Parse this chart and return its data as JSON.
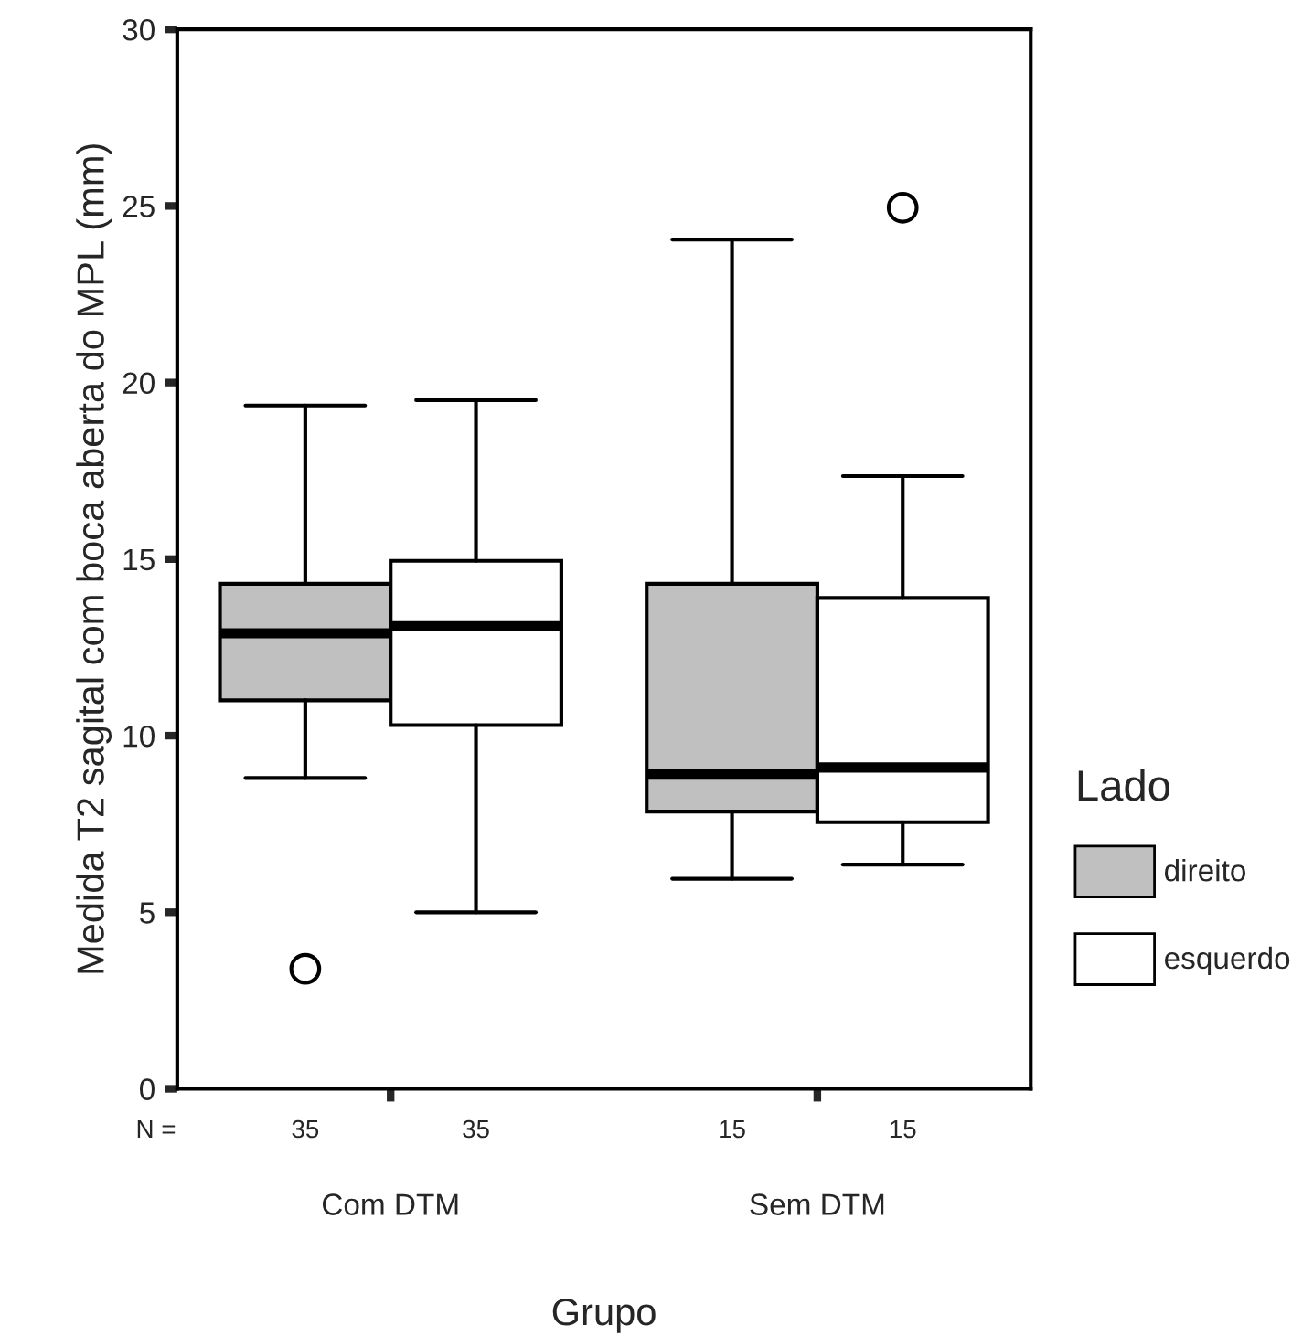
{
  "chart_data": {
    "type": "box",
    "xlabel": "Grupo",
    "ylabel": "Medida T2 sagital com boca aberta do MPL (mm)",
    "legend_title": "Lado",
    "legend": "right",
    "grid": false,
    "categories": [
      "Com DTM",
      "Sem DTM"
    ],
    "ylim": [
      0,
      30
    ],
    "yticks": [
      0,
      5,
      10,
      15,
      20,
      25,
      30
    ],
    "annotations": [
      "N =",
      "35",
      "35",
      "15",
      "15"
    ],
    "series": [
      {
        "name": "direito",
        "color": "#c0c0c0",
        "boxes": [
          {
            "low": 8.8,
            "q1": 11.0,
            "median": 12.9,
            "q3": 14.3,
            "high": 19.35,
            "outliers": [
              3.4
            ]
          },
          {
            "low": 5.95,
            "q1": 7.85,
            "median": 8.9,
            "q3": 14.3,
            "high": 24.05
          }
        ]
      },
      {
        "name": "esquerdo",
        "color": "#ffffff",
        "boxes": [
          {
            "low": 5.0,
            "q1": 10.3,
            "median": 13.1,
            "q3": 14.95,
            "high": 19.5
          },
          {
            "low": 6.35,
            "q1": 7.55,
            "median": 9.1,
            "q3": 13.9,
            "high": 17.35,
            "outliers": [
              24.95
            ]
          }
        ]
      }
    ]
  }
}
